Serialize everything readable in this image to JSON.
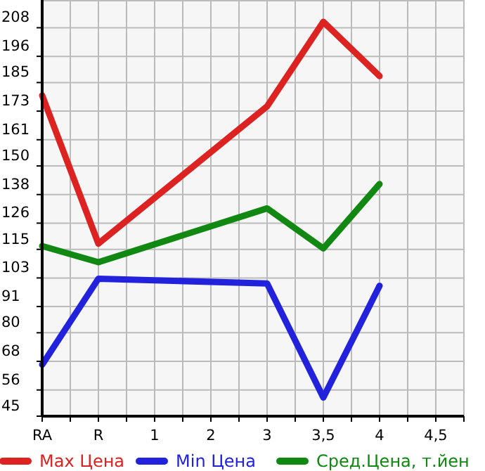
{
  "chart_data": {
    "type": "line",
    "categories": [
      "RA",
      "R",
      "1",
      "2",
      "3",
      "3,5",
      "4",
      "4,5"
    ],
    "series": [
      {
        "name": "Max Цена",
        "color": "#dd2222",
        "values": [
          179.6,
          117.4,
          null,
          null,
          175,
          210.5,
          187.7,
          null
        ]
      },
      {
        "name": "Min Цена",
        "color": "#2222dd",
        "values": [
          66.6,
          102.7,
          null,
          null,
          100.7,
          52.8,
          99.7,
          null
        ]
      },
      {
        "name": "Сред.Цена, т.йен",
        "color": "#118811",
        "values": [
          116.4,
          109.6,
          null,
          null,
          132.2,
          115.4,
          142.4,
          null
        ]
      }
    ],
    "ylim": [
      45,
      219.64
    ],
    "yticks": [
      45,
      56,
      68,
      80,
      91,
      103,
      115,
      126,
      138,
      150,
      161,
      173,
      185,
      196,
      208
    ],
    "grid": true,
    "legend": "bottom",
    "marker": "none",
    "line_style": "solid"
  }
}
